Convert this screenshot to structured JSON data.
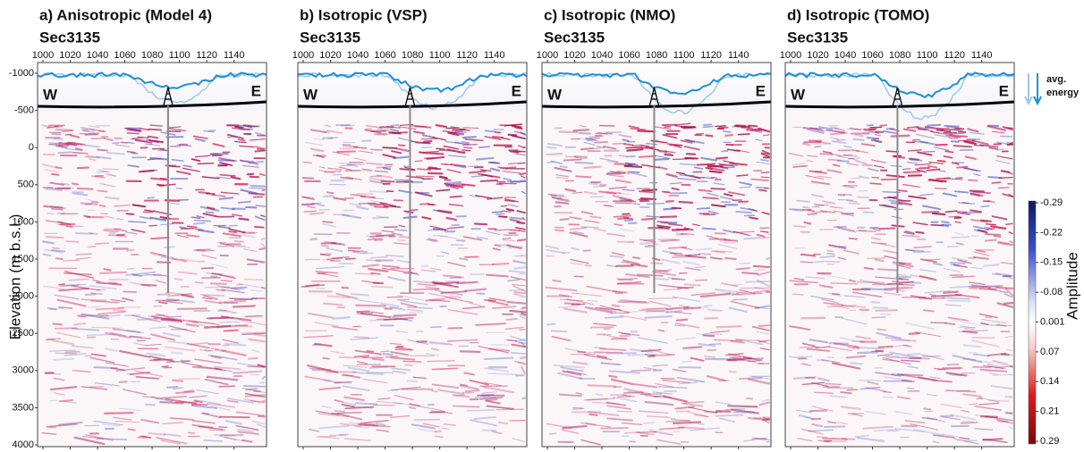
{
  "panels": [
    {
      "title": "a) Anisotropic (Model 4)",
      "section": "Sec3135"
    },
    {
      "title": "b) Isotropic (VSP)",
      "section": "Sec3135"
    },
    {
      "title": "c) Isotropic (NMO)",
      "section": "Sec3135"
    },
    {
      "title": "d) Isotropic (TOMO)",
      "section": "Sec3135"
    }
  ],
  "x_ticks": [
    1000,
    1020,
    1040,
    1060,
    1080,
    1100,
    1120,
    1140
  ],
  "west_label": "W",
  "east_label": "E",
  "y_axis": {
    "label": "Elevation (m b.s.l.)",
    "ticks": [
      -1000,
      -500,
      0,
      500,
      1000,
      1500,
      2000,
      2500,
      3000,
      3500,
      4000
    ]
  },
  "legend": {
    "line1": "avg.",
    "line2": "energy"
  },
  "colorbar": {
    "label": "Amplitude",
    "ticks": [
      -0.29,
      -0.22,
      -0.15,
      -0.08,
      0.001,
      0.07,
      0.14,
      0.21,
      0.29
    ]
  }
}
